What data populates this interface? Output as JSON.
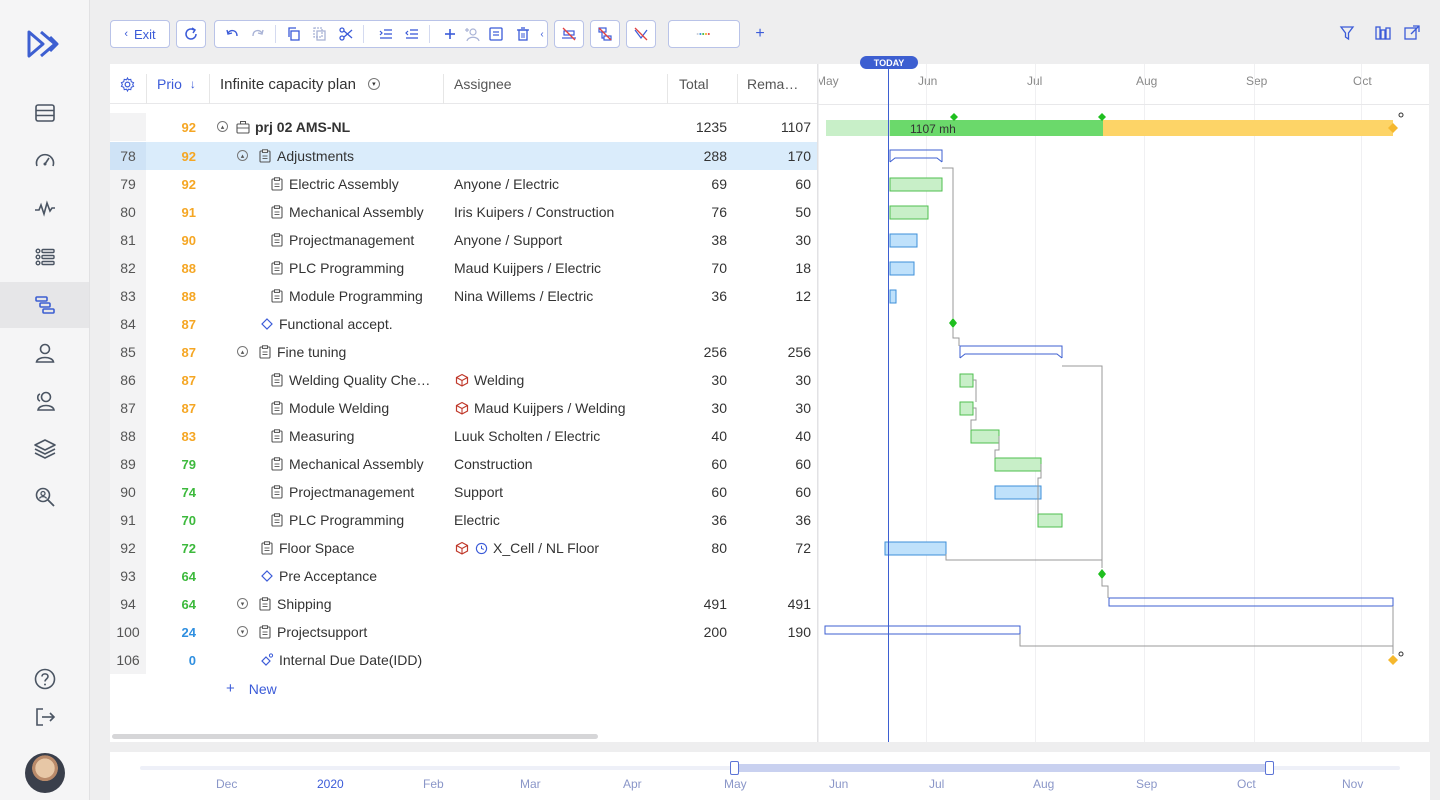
{
  "toolbar": {
    "exit_label": "Exit",
    "add_label": "+"
  },
  "grid": {
    "columns": {
      "prio": "Prio",
      "sort_indicator": "↓",
      "plan": "Infinite capacity plan",
      "assignee": "Assignee",
      "total": "Total",
      "remaining": "Rema…"
    },
    "new_label": "New",
    "rows": [
      {
        "idx": "",
        "prio": "92",
        "prio_color": "#f5a623",
        "name": "prj 02 AMS-NL",
        "assignee": "",
        "total": "1235",
        "remain": "1107"
      },
      {
        "idx": "78",
        "prio": "92",
        "prio_color": "#f5a623",
        "name": "Adjustments",
        "assignee": "",
        "total": "288",
        "remain": "170"
      },
      {
        "idx": "79",
        "prio": "92",
        "prio_color": "#f5a623",
        "name": "Electric Assembly",
        "assignee": "Anyone / Electric",
        "total": "69",
        "remain": "60"
      },
      {
        "idx": "80",
        "prio": "91",
        "prio_color": "#f5a623",
        "name": "Mechanical Assembly",
        "assignee": "Iris Kuipers / Construction",
        "total": "76",
        "remain": "50"
      },
      {
        "idx": "81",
        "prio": "90",
        "prio_color": "#f5a623",
        "name": "Projectmanagement",
        "assignee": "Anyone / Support",
        "total": "38",
        "remain": "30"
      },
      {
        "idx": "82",
        "prio": "88",
        "prio_color": "#f5a623",
        "name": "PLC Programming",
        "assignee": "Maud Kuijpers / Electric",
        "total": "70",
        "remain": "18"
      },
      {
        "idx": "83",
        "prio": "88",
        "prio_color": "#f5a623",
        "name": "Module Programming",
        "assignee": "Nina Willems / Electric",
        "total": "36",
        "remain": "12"
      },
      {
        "idx": "84",
        "prio": "87",
        "prio_color": "#f5a623",
        "name": "Functional accept.",
        "assignee": "",
        "total": "",
        "remain": ""
      },
      {
        "idx": "85",
        "prio": "87",
        "prio_color": "#f5a623",
        "name": "Fine tuning",
        "assignee": "",
        "total": "256",
        "remain": "256"
      },
      {
        "idx": "86",
        "prio": "87",
        "prio_color": "#f5a623",
        "name": "Welding Quality Che…",
        "assignee": "Welding",
        "total": "30",
        "remain": "30"
      },
      {
        "idx": "87",
        "prio": "87",
        "prio_color": "#f5a623",
        "name": "Module Welding",
        "assignee": "Maud Kuijpers / Welding",
        "total": "30",
        "remain": "30"
      },
      {
        "idx": "88",
        "prio": "83",
        "prio_color": "#f5a623",
        "name": "Measuring",
        "assignee": "Luuk Scholten / Electric",
        "total": "40",
        "remain": "40"
      },
      {
        "idx": "89",
        "prio": "79",
        "prio_color": "#3cb93c",
        "name": "Mechanical Assembly",
        "assignee": "Construction",
        "total": "60",
        "remain": "60"
      },
      {
        "idx": "90",
        "prio": "74",
        "prio_color": "#3cb93c",
        "name": "Projectmanagement",
        "assignee": "Support",
        "total": "60",
        "remain": "60"
      },
      {
        "idx": "91",
        "prio": "70",
        "prio_color": "#3cb93c",
        "name": "PLC Programming",
        "assignee": "Electric",
        "total": "36",
        "remain": "36"
      },
      {
        "idx": "92",
        "prio": "72",
        "prio_color": "#3cb93c",
        "name": "Floor Space",
        "assignee": "X_Cell / NL Floor",
        "total": "80",
        "remain": "72"
      },
      {
        "idx": "93",
        "prio": "64",
        "prio_color": "#3cb93c",
        "name": "Pre Acceptance",
        "assignee": "",
        "total": "",
        "remain": ""
      },
      {
        "idx": "94",
        "prio": "64",
        "prio_color": "#3cb93c",
        "name": "Shipping",
        "assignee": "",
        "total": "491",
        "remain": "491"
      },
      {
        "idx": "100",
        "prio": "24",
        "prio_color": "#2f8fe0",
        "name": "Projectsupport",
        "assignee": "",
        "total": "200",
        "remain": "190"
      },
      {
        "idx": "106",
        "prio": "0",
        "prio_color": "#2f8fe0",
        "name": "Internal Due Date(IDD)",
        "assignee": "",
        "total": "",
        "remain": ""
      }
    ]
  },
  "gantt": {
    "today_label": "TODAY",
    "months": [
      "May",
      "Jun",
      "Jul",
      "Aug",
      "Sep",
      "Oct"
    ],
    "summary_bar_label": "1107 mh",
    "colors": {
      "green": "#6bd96b",
      "light_green": "#c8efc8",
      "yellow": "#fdd467",
      "blue": "#bfe1fb",
      "outline": "#3d5fd1",
      "milestone": "#1fbf1f",
      "due": "#f5b82e"
    }
  },
  "timeline": {
    "labels": [
      "Dec",
      "2020",
      "Feb",
      "Mar",
      "Apr",
      "May",
      "Jun",
      "Jul",
      "Aug",
      "Sep",
      "Oct",
      "Nov"
    ]
  }
}
